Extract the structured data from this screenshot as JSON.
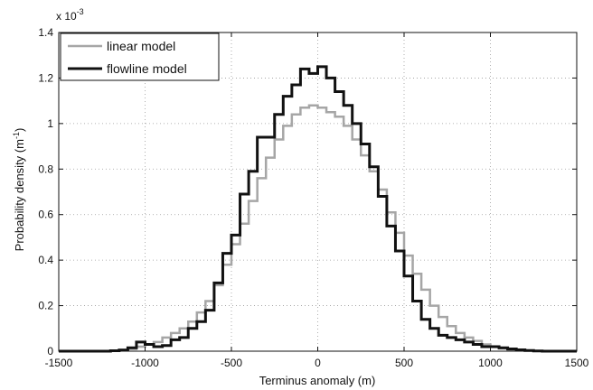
{
  "chart_data": {
    "type": "line",
    "xlabel": "Terminus anomaly (m)",
    "ylabel": "Probability density (m",
    "ylabel_sup": "-1",
    "ylabel_close": ")",
    "xlim": [
      -1500,
      1500
    ],
    "ylim": [
      0,
      1.4
    ],
    "xticks": [
      -1500,
      -1000,
      -500,
      0,
      500,
      1000,
      1500
    ],
    "xtick_labels": [
      "-1500",
      "-1000",
      "-500",
      "0",
      "500",
      "1000",
      "1500"
    ],
    "yticks": [
      0,
      0.2,
      0.4,
      0.6,
      0.8,
      1.0,
      1.2,
      1.4
    ],
    "ytick_labels": [
      "0",
      "0.2",
      "0.4",
      "0.6",
      "0.8",
      "1",
      "1.2",
      "1.4"
    ],
    "y_multiplier_base": "x 10",
    "y_multiplier_exp": "-3",
    "grid": true,
    "legend_position": "top-left",
    "style": "step histogram",
    "bin_edges": [
      -1500,
      -1450,
      -1400,
      -1350,
      -1300,
      -1250,
      -1200,
      -1150,
      -1100,
      -1050,
      -1000,
      -950,
      -900,
      -850,
      -800,
      -750,
      -700,
      -650,
      -600,
      -550,
      -500,
      -450,
      -400,
      -350,
      -300,
      -250,
      -200,
      -150,
      -100,
      -50,
      0,
      50,
      100,
      150,
      200,
      250,
      300,
      350,
      400,
      450,
      500,
      550,
      600,
      650,
      700,
      750,
      800,
      850,
      900,
      950,
      1000,
      1050,
      1100,
      1150,
      1200,
      1250,
      1300,
      1350,
      1400,
      1450,
      1500
    ],
    "series": [
      {
        "name": "linear model",
        "color": "#a6a6a6",
        "values": [
          0,
          0,
          0,
          0,
          0,
          0,
          0.003,
          0.006,
          0.01,
          0.02,
          0.03,
          0.04,
          0.06,
          0.08,
          0.1,
          0.13,
          0.17,
          0.22,
          0.29,
          0.38,
          0.47,
          0.56,
          0.66,
          0.76,
          0.85,
          0.93,
          0.99,
          1.04,
          1.07,
          1.08,
          1.07,
          1.05,
          1.03,
          0.99,
          0.93,
          0.86,
          0.79,
          0.71,
          0.61,
          0.52,
          0.42,
          0.34,
          0.27,
          0.2,
          0.15,
          0.11,
          0.08,
          0.06,
          0.045,
          0.03,
          0.02,
          0.012,
          0.007,
          0.004,
          0.002,
          0.001,
          0,
          0,
          0,
          0
        ]
      },
      {
        "name": "flowline model",
        "color": "#111111",
        "values": [
          0,
          0,
          0,
          0,
          0,
          0,
          0.002,
          0.005,
          0.015,
          0.04,
          0.03,
          0.02,
          0.025,
          0.05,
          0.06,
          0.1,
          0.13,
          0.18,
          0.3,
          0.43,
          0.51,
          0.69,
          0.79,
          0.94,
          0.94,
          1.04,
          1.12,
          1.17,
          1.24,
          1.22,
          1.25,
          1.2,
          1.14,
          1.08,
          1.0,
          0.91,
          0.81,
          0.68,
          0.55,
          0.44,
          0.33,
          0.22,
          0.14,
          0.1,
          0.07,
          0.06,
          0.05,
          0.04,
          0.03,
          0.02,
          0.02,
          0.015,
          0.01,
          0.006,
          0.003,
          0.001,
          0,
          0,
          0,
          0
        ]
      }
    ]
  }
}
